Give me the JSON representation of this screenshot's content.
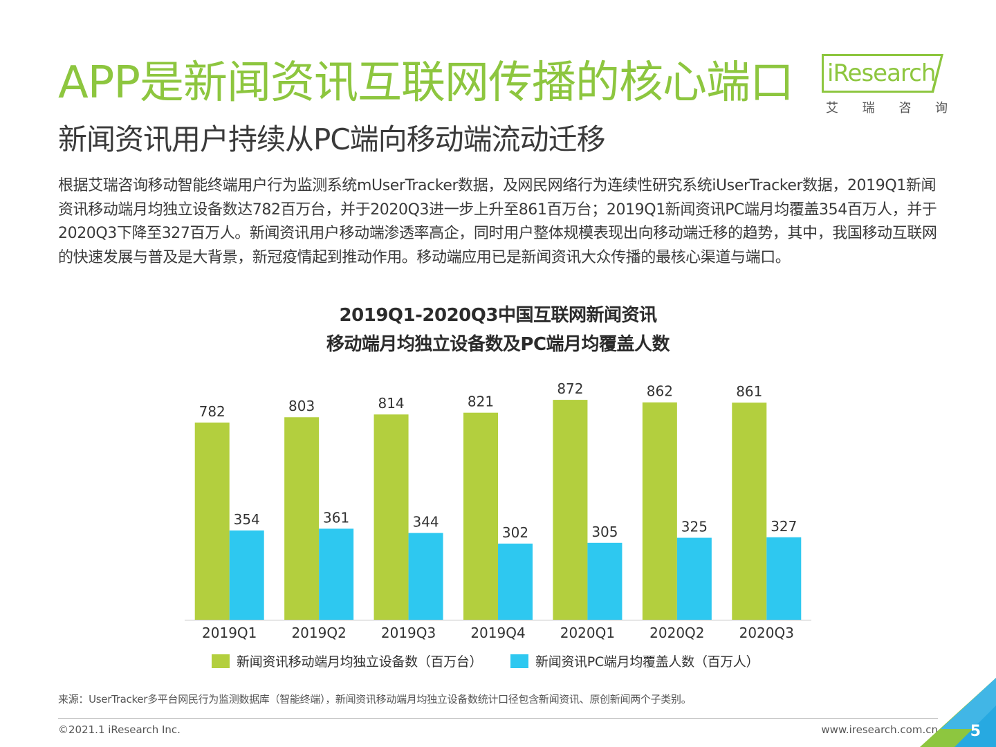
{
  "page": {
    "title": "APP是新闻资讯互联网传播的核心端口",
    "subtitle": "新闻资讯用户持续从PC端向移动端流动迁移",
    "body": "根据艾瑞咨询移动智能终端用户行为监测系统mUserTracker数据，及网民网络行为连续性研究系统iUserTracker数据，2019Q1新闻资讯移动端月均独立设备数达782百万台，并于2020Q3进一步上升至861百万台；2019Q1新闻资讯PC端月均覆盖354百万人，并于2020Q3下降至327百万人。新闻资讯用户移动端渗透率高企，同时用户整体规模表现出向移动端迁移的趋势，其中，我国移动互联网的快速发展与普及是大背景，新冠疫情起到推动作用。移动端应用已是新闻资讯大众传播的最核心渠道与端口。",
    "logo_text": "iResearch",
    "logo_cn": [
      "艾",
      "瑞",
      "咨",
      "询"
    ],
    "source": "来源：UserTracker多平台网民行为监测数据库（智能终端），新闻资讯移动端月均独立设备数统计口径包含新闻资讯、原创新闻两个子类别。",
    "copyright": "©2021.1 iResearch Inc.",
    "website": "www.iresearch.com.cn",
    "page_number": "5"
  },
  "chart_data": {
    "type": "bar",
    "title_line1": "2019Q1-2020Q3中国互联网新闻资讯",
    "title_line2": "移动端月均独立设备数及PC端月均覆盖人数",
    "categories": [
      "2019Q1",
      "2019Q2",
      "2019Q3",
      "2019Q4",
      "2020Q1",
      "2020Q2",
      "2020Q3"
    ],
    "series": [
      {
        "name": "新闻资讯移动端月均独立设备数（百万台）",
        "color": "#b3cf3e",
        "values": [
          782,
          803,
          814,
          821,
          872,
          862,
          861
        ]
      },
      {
        "name": "新闻资讯PC端月均覆盖人数（百万人）",
        "color": "#2ec8f0",
        "values": [
          354,
          361,
          344,
          302,
          305,
          325,
          327
        ]
      }
    ],
    "ylim": [
      0,
      960
    ],
    "grid": false,
    "legend_position": "bottom",
    "data_labels": true
  }
}
